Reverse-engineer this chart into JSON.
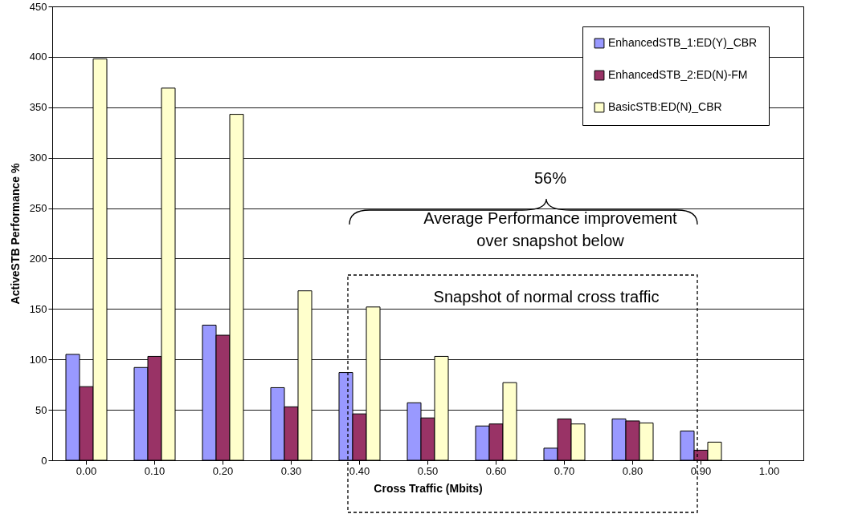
{
  "chart_data": {
    "type": "bar",
    "xlabel": "Cross Traffic (Mbits)",
    "ylabel": "ActiveSTB Performance %",
    "categories": [
      "0.00",
      "0.10",
      "0.20",
      "0.30",
      "0.40",
      "0.50",
      "0.60",
      "0.70",
      "0.80",
      "0.90",
      "1.00"
    ],
    "series": [
      {
        "name": "EnhancedSTB_1:ED(Y)_CBR",
        "color": "#9999ff",
        "values": [
          105,
          92,
          134,
          72,
          87,
          57,
          34,
          12,
          41,
          29,
          null
        ]
      },
      {
        "name": "EnhancedSTB_2:ED(N)-FM",
        "color": "#993366",
        "values": [
          73,
          103,
          124,
          53,
          46,
          42,
          36,
          41,
          39,
          10,
          null
        ]
      },
      {
        "name": "BasicSTB:ED(N)_CBR",
        "color": "#ffffcc",
        "values": [
          398,
          369,
          343,
          168,
          152,
          103,
          77,
          36,
          37,
          18,
          null
        ]
      }
    ],
    "ylim": [
      0,
      450
    ],
    "yticks": [
      0,
      50,
      100,
      150,
      200,
      250,
      300,
      350,
      400,
      450
    ],
    "grid": "y",
    "legend": "top right",
    "annotations": [
      "56%",
      "Average Performance improvement\nover snapshot below",
      "Snapshot of normal cross traffic"
    ]
  }
}
